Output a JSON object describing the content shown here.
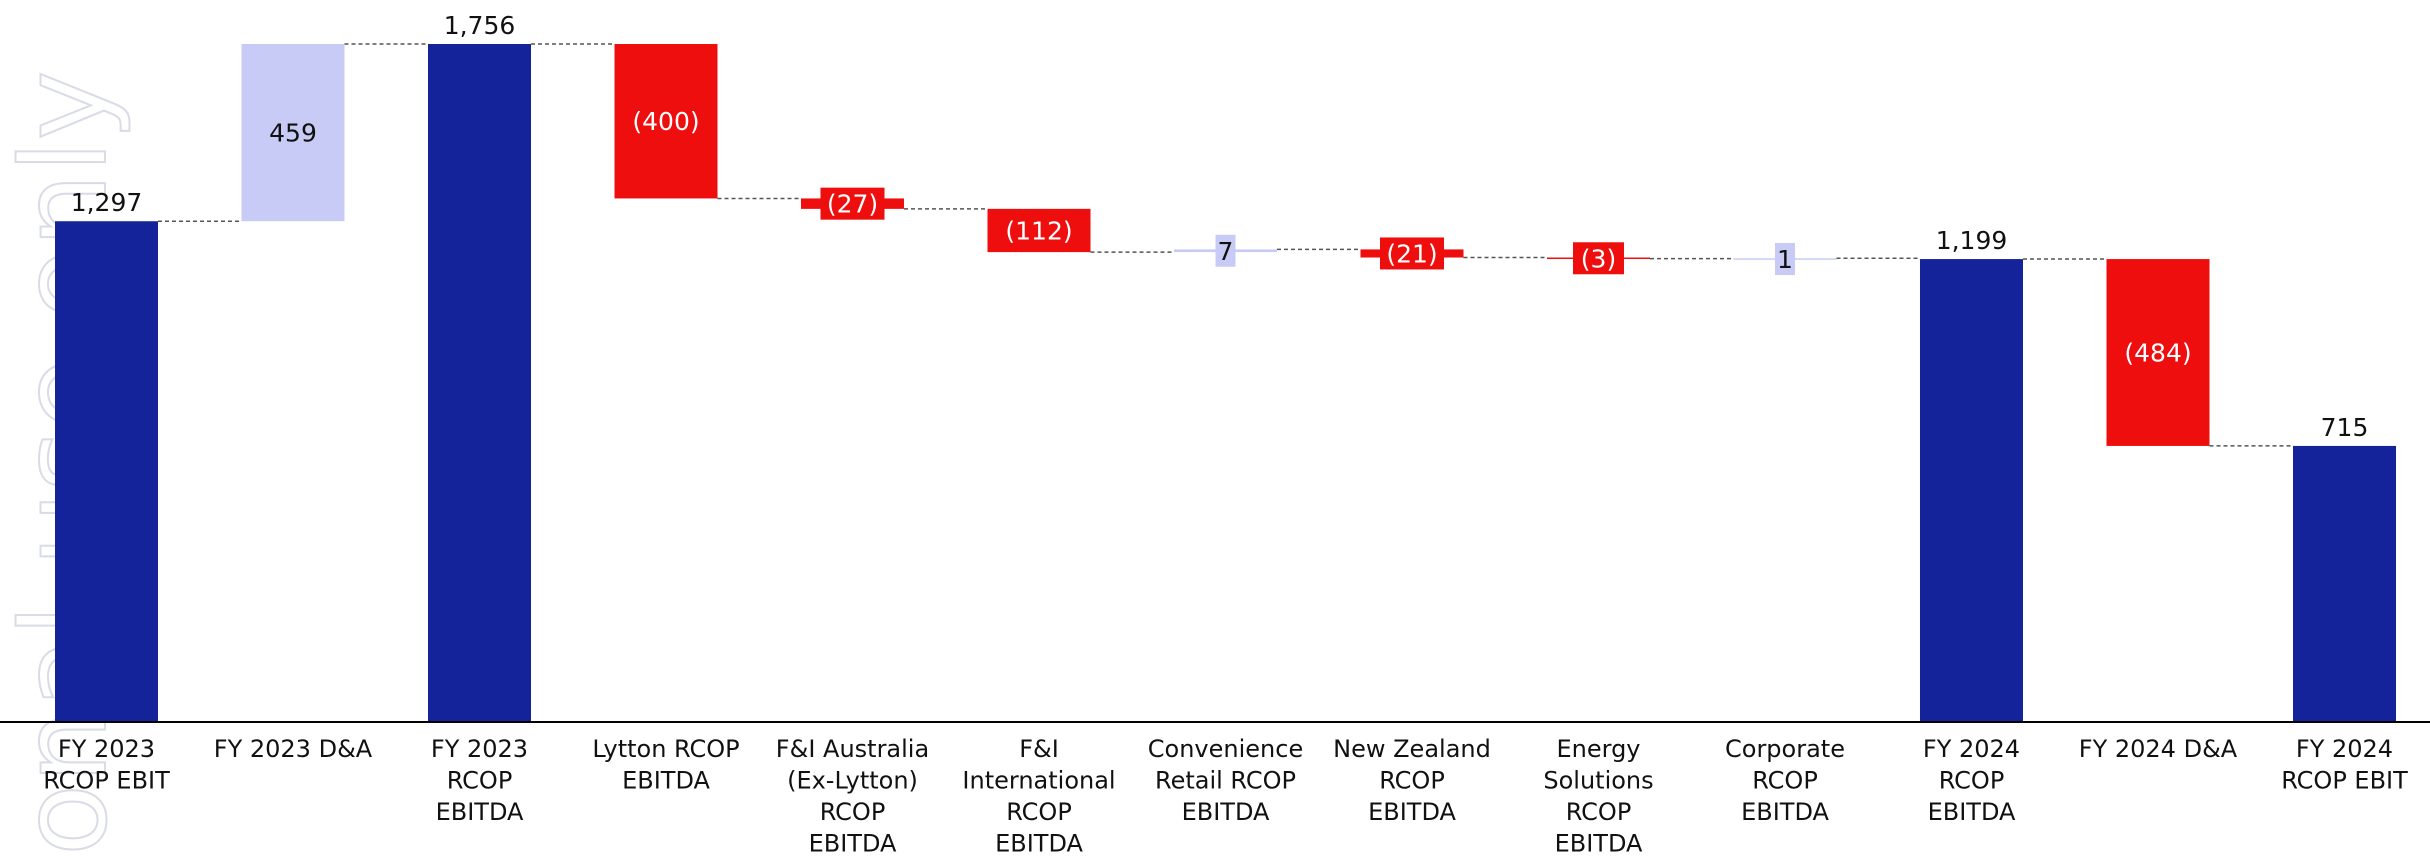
{
  "watermark": {
    "text": "onal use only"
  },
  "colors": {
    "total": "#15239A",
    "increase": "#C8CBF5",
    "decrease": "#EE0E0E",
    "connector": "#555555",
    "axis": "#000000",
    "text_dark": "#111111",
    "text_light": "#ffffff",
    "watermark": "#D9DBE6"
  },
  "chart_data": {
    "type": "bar",
    "subtype": "waterfall",
    "title": "",
    "xlabel": "",
    "ylabel": "",
    "ylim": [
      0,
      1756
    ],
    "grid": false,
    "legend": "none",
    "categories": [
      [
        "FY 2023",
        "RCOP EBIT"
      ],
      [
        "FY 2023 D&A"
      ],
      [
        "FY 2023",
        "RCOP",
        "EBITDA"
      ],
      [
        "Lytton RCOP",
        "EBITDA"
      ],
      [
        "F&I Australia",
        "(Ex-Lytton)",
        "RCOP",
        "EBITDA"
      ],
      [
        "F&I",
        "International",
        "RCOP",
        "EBITDA"
      ],
      [
        "Convenience",
        "Retail RCOP",
        "EBITDA"
      ],
      [
        "New Zealand",
        "RCOP",
        "EBITDA"
      ],
      [
        "Energy",
        "Solutions",
        "RCOP",
        "EBITDA"
      ],
      [
        "Corporate",
        "RCOP",
        "EBITDA"
      ],
      [
        "FY 2024",
        "RCOP",
        "EBITDA"
      ],
      [
        "FY 2024 D&A"
      ],
      [
        "FY 2024",
        "RCOP EBIT"
      ]
    ],
    "values": [
      1297,
      459,
      1756,
      -400,
      -27,
      -112,
      7,
      -21,
      -3,
      1,
      1199,
      -484,
      715
    ],
    "kinds": [
      "total",
      "increase",
      "total",
      "decrease",
      "decrease",
      "decrease",
      "increase",
      "decrease",
      "decrease",
      "increase",
      "total",
      "decrease",
      "total"
    ],
    "data_labels": [
      "1,297",
      "459",
      "1,756",
      "(400)",
      "(27)",
      "(112)",
      "7",
      "(21)",
      "(3)",
      "1",
      "1,199",
      "(484)",
      "715"
    ]
  }
}
